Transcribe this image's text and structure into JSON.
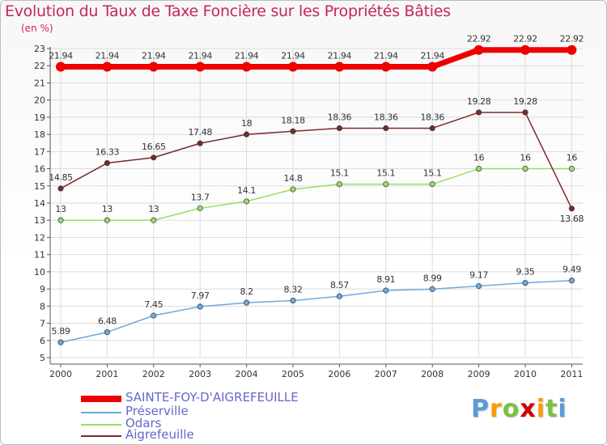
{
  "title": "Evolution du Taux de Taxe Foncière sur les Propriétés Bâties",
  "subtitle": "(en %)",
  "brand_text": "Proxiti",
  "brand_colors": [
    "#5b9bd5",
    "#ff9900",
    "#7cc242",
    "#cc0000",
    "#ff9900",
    "#7cc242",
    "#5b9bd5"
  ],
  "chart_data": {
    "type": "line",
    "x": [
      "2000",
      "2001",
      "2002",
      "2003",
      "2004",
      "2005",
      "2006",
      "2007",
      "2008",
      "2009",
      "2010",
      "2011"
    ],
    "ylim": [
      5,
      23
    ],
    "yticks": [
      "5",
      "6",
      "7",
      "8",
      "9",
      "10",
      "11",
      "12",
      "13",
      "14",
      "15",
      "16",
      "17",
      "18",
      "19",
      "20",
      "21",
      "22",
      "23"
    ],
    "grid": true,
    "legend_placement": "bottom-left",
    "series": [
      {
        "name": "SAINTE-FOY-D'AIGREFEUILLE",
        "color": "#ee0000",
        "values": [
          21.94,
          21.94,
          21.94,
          21.94,
          21.94,
          21.94,
          21.94,
          21.94,
          21.94,
          22.92,
          22.92,
          22.92
        ],
        "labels": [
          "21.94",
          "21.94",
          "21.94",
          "21.94",
          "21.94",
          "21.94",
          "21.94",
          "21.94",
          "21.94",
          "22.92",
          "22.92",
          "22.92"
        ]
      },
      {
        "name": "Préserville",
        "color": "#6fa8dc",
        "values": [
          5.89,
          6.48,
          7.45,
          7.97,
          8.2,
          8.32,
          8.57,
          8.91,
          8.99,
          9.17,
          9.35,
          9.49
        ],
        "labels": [
          "5.89",
          "6.48",
          "7.45",
          "7.97",
          "8.2",
          "8.32",
          "8.57",
          "8.91",
          "8.99",
          "9.17",
          "9.35",
          "9.49"
        ]
      },
      {
        "name": "Odars",
        "color": "#99dd66",
        "values": [
          13,
          13,
          13,
          13.7,
          14.1,
          14.8,
          15.1,
          15.1,
          15.1,
          16,
          16,
          16
        ],
        "labels": [
          "13",
          "13",
          "13",
          "13.7",
          "14.1",
          "14.8",
          "15.1",
          "15.1",
          "15.1",
          "16",
          "16",
          "16"
        ]
      },
      {
        "name": "Aigrefeuille",
        "color": "#7a2a2a",
        "values": [
          14.85,
          16.33,
          16.65,
          17.48,
          18,
          18.18,
          18.36,
          18.36,
          18.36,
          19.28,
          19.28,
          13.68
        ],
        "labels": [
          "14.85",
          "16.33",
          "16.65",
          "17.48",
          "18",
          "18.18",
          "18.36",
          "18.36",
          "18.36",
          "19.28",
          "19.28",
          "13.68"
        ]
      }
    ]
  }
}
